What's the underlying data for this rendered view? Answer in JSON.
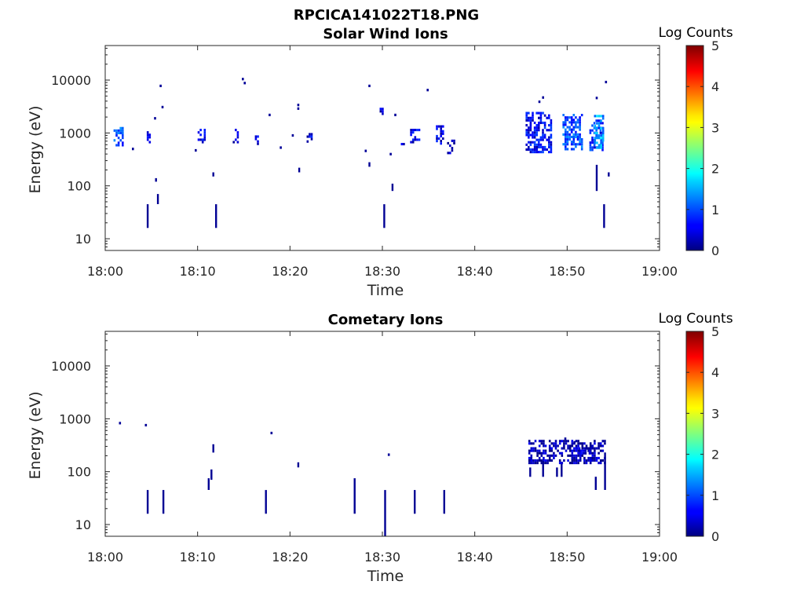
{
  "figure_title": "RPCICA141022T18.PNG",
  "chart_data": [
    {
      "type": "heatmap",
      "title": "Solar Wind Ions",
      "xlabel": "Time",
      "ylabel": "Energy (eV)",
      "x_ticks": [
        "18:00",
        "18:10",
        "18:20",
        "18:30",
        "18:40",
        "18:50",
        "19:00"
      ],
      "x_range_minutes": [
        0,
        60
      ],
      "y_scale": "log",
      "y_ticks": [
        {
          "value": 10,
          "label": "10"
        },
        {
          "value": 100,
          "label": "100"
        },
        {
          "value": 1000,
          "label": "1000"
        },
        {
          "value": 10000,
          "label": "10000"
        }
      ],
      "y_range": [
        6,
        45000
      ],
      "colorbar": {
        "label": "Log Counts",
        "range": [
          0,
          5
        ],
        "ticks": [
          "0",
          "1",
          "2",
          "3",
          "4",
          "5"
        ]
      },
      "clusters": [
        {
          "t": [
            0.9,
            1.8
          ],
          "e": [
            600,
            1300
          ],
          "level": 1.0
        },
        {
          "t": [
            4.5,
            4.9
          ],
          "e": [
            650,
            1200
          ],
          "level": 0.5
        },
        {
          "t": [
            10.0,
            10.8
          ],
          "e": [
            650,
            1200
          ],
          "level": 0.5
        },
        {
          "t": [
            13.8,
            14.4
          ],
          "e": [
            650,
            1200
          ],
          "level": 0.5
        },
        {
          "t": [
            16.2,
            16.6
          ],
          "e": [
            650,
            900
          ],
          "level": 0.5
        },
        {
          "t": [
            21.8,
            22.4
          ],
          "e": [
            700,
            1000
          ],
          "level": 0.5
        },
        {
          "t": [
            29.7,
            30.0
          ],
          "e": [
            2000,
            3000
          ],
          "level": 0.3
        },
        {
          "t": [
            32.0,
            32.4
          ],
          "e": [
            550,
            650
          ],
          "level": 0.5
        },
        {
          "t": [
            33.0,
            33.9
          ],
          "e": [
            700,
            1200
          ],
          "level": 0.5
        },
        {
          "t": [
            35.8,
            36.6
          ],
          "e": [
            650,
            1400
          ],
          "level": 0.5
        },
        {
          "t": [
            37.0,
            38.1
          ],
          "e": [
            420,
            750
          ],
          "level": 0.4
        },
        {
          "t": [
            45.5,
            48.2
          ],
          "e": [
            450,
            2500
          ],
          "level": 0.6
        },
        {
          "t": [
            49.5,
            51.5
          ],
          "e": [
            500,
            2300
          ],
          "level": 1.0
        },
        {
          "t": [
            52.4,
            53.8
          ],
          "e": [
            500,
            1800
          ],
          "level": 0.8
        },
        {
          "t": [
            52.9,
            54.0
          ],
          "e": [
            550,
            2200
          ],
          "level": 1.4
        }
      ],
      "columns": [
        {
          "t": 4.6,
          "e": [
            16,
            45
          ]
        },
        {
          "t": 12.0,
          "e": [
            16,
            45
          ]
        },
        {
          "t": 30.2,
          "e": [
            16,
            45
          ]
        },
        {
          "t": 54.0,
          "e": [
            16,
            45
          ]
        },
        {
          "t": 5.7,
          "e": [
            45,
            70
          ]
        },
        {
          "t": 5.5,
          "e": [
            120,
            140
          ]
        },
        {
          "t": 31.1,
          "e": [
            80,
            110
          ]
        },
        {
          "t": 11.7,
          "e": [
            150,
            180
          ]
        },
        {
          "t": 21.0,
          "e": [
            180,
            220
          ]
        },
        {
          "t": 53.2,
          "e": [
            80,
            250
          ]
        },
        {
          "t": 54.5,
          "e": [
            150,
            180
          ]
        },
        {
          "t": 28.6,
          "e": [
            230,
            280
          ]
        }
      ],
      "points": [
        {
          "t": 6.0,
          "e": 7800
        },
        {
          "t": 14.9,
          "e": 10500
        },
        {
          "t": 15.1,
          "e": 8800
        },
        {
          "t": 28.6,
          "e": 7800
        },
        {
          "t": 34.9,
          "e": 6500
        },
        {
          "t": 54.2,
          "e": 9200
        },
        {
          "t": 6.2,
          "e": 3100
        },
        {
          "t": 20.9,
          "e": 3400
        },
        {
          "t": 20.9,
          "e": 2900
        },
        {
          "t": 5.4,
          "e": 1900
        },
        {
          "t": 17.8,
          "e": 2200
        },
        {
          "t": 31.4,
          "e": 2200
        },
        {
          "t": 3.0,
          "e": 500
        },
        {
          "t": 9.8,
          "e": 470
        },
        {
          "t": 19.0,
          "e": 530
        },
        {
          "t": 28.2,
          "e": 460
        },
        {
          "t": 30.9,
          "e": 400
        },
        {
          "t": 53.2,
          "e": 4600
        },
        {
          "t": 47.4,
          "e": 4700
        },
        {
          "t": 47.0,
          "e": 3900
        },
        {
          "t": 20.3,
          "e": 900
        }
      ]
    },
    {
      "type": "heatmap",
      "title": "Cometary Ions",
      "xlabel": "Time",
      "ylabel": "Energy (eV)",
      "x_ticks": [
        "18:00",
        "18:10",
        "18:20",
        "18:30",
        "18:40",
        "18:50",
        "19:00"
      ],
      "x_range_minutes": [
        0,
        60
      ],
      "y_scale": "log",
      "y_ticks": [
        {
          "value": 10,
          "label": "10"
        },
        {
          "value": 100,
          "label": "100"
        },
        {
          "value": 1000,
          "label": "1000"
        },
        {
          "value": 10000,
          "label": "10000"
        }
      ],
      "y_range": [
        6,
        45000
      ],
      "colorbar": {
        "label": "Log Counts",
        "range": [
          0,
          5
        ],
        "ticks": [
          "0",
          "1",
          "2",
          "3",
          "4",
          "5"
        ]
      },
      "clusters": [
        {
          "t": [
            45.8,
            54.1
          ],
          "e": [
            150,
            400
          ],
          "level": 0.2
        },
        {
          "t": [
            51.0,
            52.6
          ],
          "e": [
            230,
            290
          ],
          "level": 0.5
        }
      ],
      "columns": [
        {
          "t": 4.6,
          "e": [
            16,
            45
          ]
        },
        {
          "t": 6.3,
          "e": [
            16,
            45
          ]
        },
        {
          "t": 17.4,
          "e": [
            16,
            45
          ]
        },
        {
          "t": 27.0,
          "e": [
            16,
            75
          ]
        },
        {
          "t": 30.3,
          "e": [
            6,
            45
          ]
        },
        {
          "t": 33.5,
          "e": [
            16,
            45
          ]
        },
        {
          "t": 36.7,
          "e": [
            16,
            45
          ]
        },
        {
          "t": 11.2,
          "e": [
            45,
            75
          ]
        },
        {
          "t": 11.5,
          "e": [
            70,
            110
          ]
        },
        {
          "t": 11.7,
          "e": [
            230,
            330
          ]
        },
        {
          "t": 53.1,
          "e": [
            45,
            80
          ]
        },
        {
          "t": 54.1,
          "e": [
            45,
            230
          ]
        },
        {
          "t": 46.0,
          "e": [
            80,
            120
          ]
        },
        {
          "t": 47.4,
          "e": [
            80,
            160
          ]
        },
        {
          "t": 48.9,
          "e": [
            80,
            120
          ]
        },
        {
          "t": 49.4,
          "e": [
            80,
            140
          ]
        },
        {
          "t": 20.9,
          "e": [
            120,
            150
          ]
        }
      ],
      "points": [
        {
          "t": 1.6,
          "e": 830
        },
        {
          "t": 4.4,
          "e": 760
        },
        {
          "t": 18.0,
          "e": 540
        },
        {
          "t": 30.7,
          "e": 210
        },
        {
          "t": 49.8,
          "e": 420
        },
        {
          "t": 50.8,
          "e": 360
        }
      ]
    }
  ]
}
